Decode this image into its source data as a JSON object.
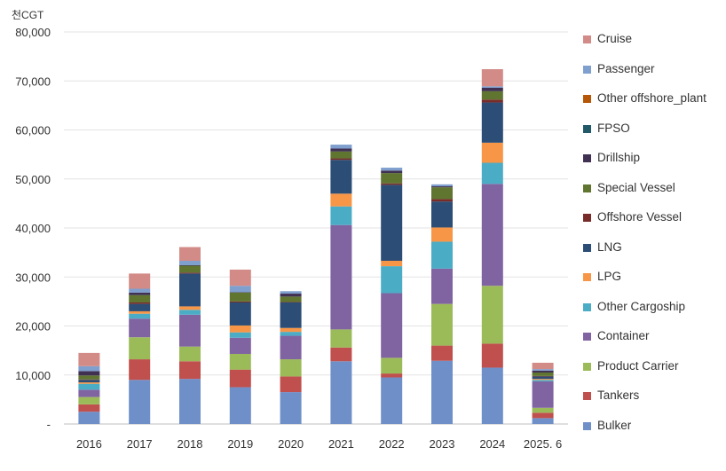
{
  "chart_data": {
    "type": "bar",
    "stacked": true,
    "unit_label": "천CGT",
    "categories": [
      "2016",
      "2017",
      "2018",
      "2019",
      "2020",
      "2021",
      "2022",
      "2023",
      "2024",
      "2025. 6"
    ],
    "ylim": [
      0,
      80000
    ],
    "yticks": [
      "-",
      "10,000",
      "20,000",
      "30,000",
      "40,000",
      "50,000",
      "60,000",
      "70,000",
      "80,000"
    ],
    "grid": true,
    "legend_position": "right",
    "series": [
      {
        "name": "Bulker",
        "color": "#6f8fc9",
        "values": [
          2500,
          9000,
          9200,
          7500,
          6500,
          12800,
          9500,
          12900,
          11500,
          1200
        ]
      },
      {
        "name": "Tankers",
        "color": "#c0504d",
        "values": [
          1500,
          4200,
          3600,
          3600,
          3200,
          2800,
          800,
          3100,
          4900,
          1100
        ]
      },
      {
        "name": "Product Carrier",
        "color": "#9bbb59",
        "values": [
          1500,
          4500,
          3000,
          3200,
          3500,
          3700,
          3200,
          8500,
          11800,
          1000
        ]
      },
      {
        "name": "Container",
        "color": "#8064a2",
        "values": [
          1500,
          3800,
          6500,
          3300,
          4800,
          21300,
          13200,
          7200,
          20800,
          5400
        ]
      },
      {
        "name": "Other Cargoship",
        "color": "#4bacc6",
        "values": [
          1200,
          1000,
          1000,
          1100,
          800,
          3800,
          5500,
          5500,
          4300,
          300
        ]
      },
      {
        "name": "LPG",
        "color": "#f79646",
        "values": [
          300,
          500,
          700,
          1400,
          800,
          2600,
          1100,
          2900,
          4100,
          200
        ]
      },
      {
        "name": "LNG",
        "color": "#2c4d75",
        "values": [
          500,
          1500,
          6700,
          4700,
          5200,
          6900,
          15500,
          5300,
          8200,
          500
        ]
      },
      {
        "name": "Offshore Vessel",
        "color": "#772c2a",
        "values": [
          100,
          300,
          200,
          200,
          100,
          300,
          300,
          500,
          600,
          100
        ]
      },
      {
        "name": "Special Vessel",
        "color": "#5f7530",
        "values": [
          800,
          1500,
          1400,
          1800,
          1100,
          1400,
          2100,
          2400,
          1700,
          700
        ]
      },
      {
        "name": "Drillship",
        "color": "#403152",
        "values": [
          900,
          500,
          100,
          100,
          600,
          600,
          500,
          200,
          700,
          400
        ]
      },
      {
        "name": "FPSO",
        "color": "#215968",
        "values": [
          0,
          0,
          0,
          0,
          0,
          0,
          0,
          0,
          0,
          0
        ]
      },
      {
        "name": "Other offshore_plant",
        "color": "#b65708",
        "values": [
          0,
          0,
          0,
          0,
          0,
          0,
          0,
          0,
          0,
          0
        ]
      },
      {
        "name": "Passenger",
        "color": "#7f9fcf",
        "values": [
          1000,
          800,
          900,
          1300,
          500,
          800,
          600,
          400,
          300,
          300
        ]
      },
      {
        "name": "Cruise",
        "color": "#d28b87",
        "values": [
          2700,
          3100,
          2800,
          3300,
          0,
          0,
          0,
          0,
          3500,
          1300
        ]
      }
    ]
  }
}
